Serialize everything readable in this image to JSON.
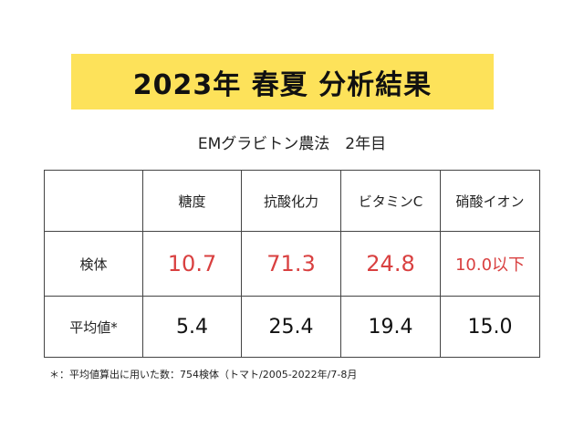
{
  "title": "2023年 春夏 分析結果",
  "subtitle": "EMグラビトン農法　2年目",
  "table": {
    "columns": [
      "",
      "糖度",
      "抗酸化力",
      "ビタミンC",
      "硝酸イオン"
    ],
    "rows": [
      {
        "label": "検体",
        "values": [
          "10.7",
          "71.3",
          "24.8",
          "10.0以下"
        ]
      },
      {
        "label": "平均値*",
        "values": [
          "5.4",
          "25.4",
          "19.4",
          "15.0"
        ]
      }
    ]
  },
  "footnote": "＊：平均値算出に用いた数：754検体（トマト/2005-2022年/7-8月",
  "colors": {
    "banner": "#fde25a",
    "sample_values": "#d94040",
    "average_values": "#111111"
  }
}
